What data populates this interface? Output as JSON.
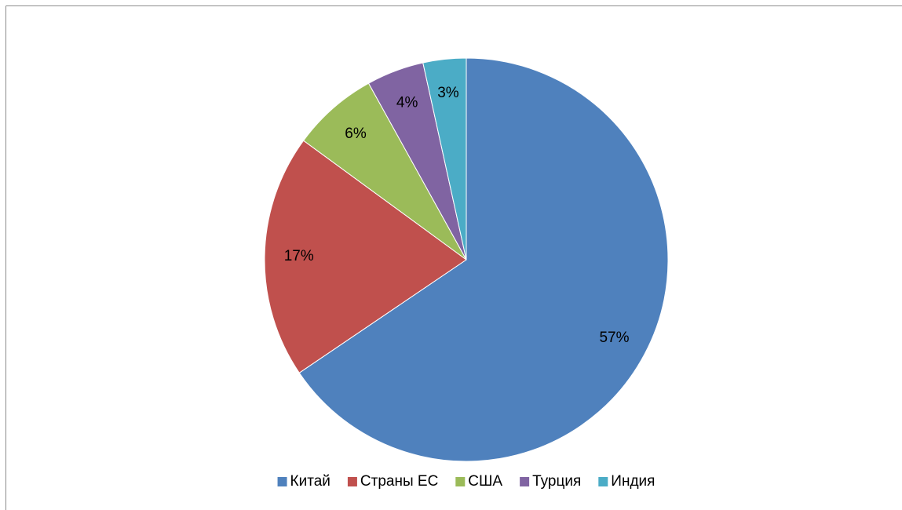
{
  "chart_data": {
    "type": "pie",
    "categories": [
      "Китай",
      "Страны ЕС",
      "США",
      "Турция",
      "Индия"
    ],
    "values": [
      57,
      17,
      6,
      4,
      3
    ],
    "value_labels": [
      "57%",
      "17%",
      "6%",
      "4%",
      "3%"
    ],
    "colors": [
      "#4f81bd",
      "#c0504d",
      "#9bbb59",
      "#8064a2",
      "#4bacc6"
    ],
    "legend": "bottom"
  }
}
